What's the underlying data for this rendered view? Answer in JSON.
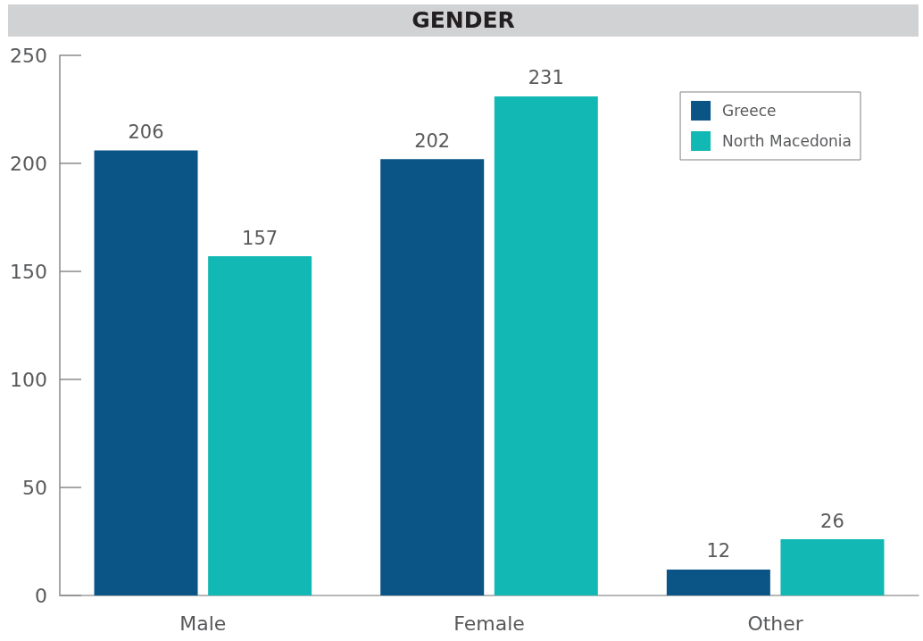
{
  "chart_data": {
    "type": "bar",
    "title": "GENDER",
    "categories": [
      "Male",
      "Female",
      "Other"
    ],
    "series": [
      {
        "name": "Greece",
        "color": "#0a5486",
        "values": [
          206,
          202,
          12
        ]
      },
      {
        "name": "North Macedonia",
        "color": "#12b8b3",
        "values": [
          157,
          231,
          26
        ]
      }
    ],
    "ylim": [
      0,
      250
    ],
    "yticks": [
      0,
      50,
      100,
      150,
      200,
      250
    ],
    "data_labels": true,
    "legend": "top right",
    "grid": false
  }
}
